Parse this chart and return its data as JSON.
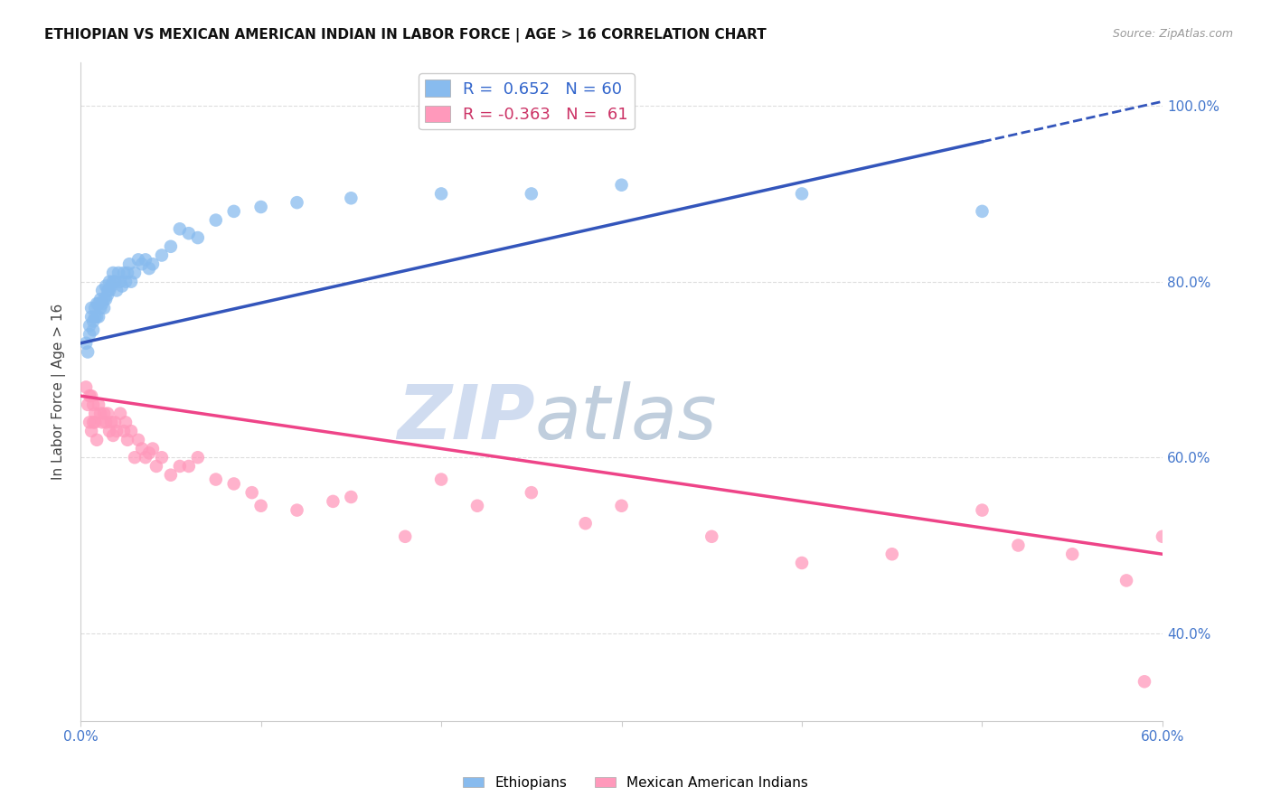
{
  "title": "ETHIOPIAN VS MEXICAN AMERICAN INDIAN IN LABOR FORCE | AGE > 16 CORRELATION CHART",
  "source": "Source: ZipAtlas.com",
  "ylabel": "In Labor Force | Age > 16",
  "xlim": [
    0.0,
    0.6
  ],
  "ylim": [
    0.3,
    1.05
  ],
  "yticks": [
    0.4,
    0.6,
    0.8,
    1.0
  ],
  "ytick_labels": [
    "40.0%",
    "60.0%",
    "80.0%",
    "100.0%"
  ],
  "blue_R": 0.652,
  "blue_N": 60,
  "pink_R": -0.363,
  "pink_N": 61,
  "blue_color": "#88BBEE",
  "pink_color": "#FF99BB",
  "blue_line_color": "#3355BB",
  "pink_line_color": "#EE4488",
  "watermark_zip": "ZIP",
  "watermark_atlas": "atlas",
  "watermark_color_zip": "#D0DCF0",
  "watermark_color_atlas": "#C8D8E8",
  "background_color": "#FFFFFF",
  "grid_color": "#DDDDDD",
  "blue_scatter_x": [
    0.003,
    0.004,
    0.005,
    0.005,
    0.006,
    0.006,
    0.007,
    0.007,
    0.008,
    0.008,
    0.009,
    0.009,
    0.01,
    0.01,
    0.011,
    0.011,
    0.012,
    0.012,
    0.013,
    0.013,
    0.014,
    0.014,
    0.015,
    0.015,
    0.016,
    0.016,
    0.017,
    0.018,
    0.018,
    0.019,
    0.02,
    0.021,
    0.022,
    0.023,
    0.024,
    0.025,
    0.026,
    0.027,
    0.028,
    0.03,
    0.032,
    0.034,
    0.036,
    0.038,
    0.04,
    0.045,
    0.05,
    0.055,
    0.06,
    0.065,
    0.075,
    0.085,
    0.1,
    0.12,
    0.15,
    0.2,
    0.25,
    0.3,
    0.4,
    0.5
  ],
  "blue_scatter_y": [
    0.73,
    0.72,
    0.74,
    0.75,
    0.76,
    0.77,
    0.755,
    0.745,
    0.77,
    0.76,
    0.775,
    0.76,
    0.775,
    0.76,
    0.78,
    0.77,
    0.79,
    0.775,
    0.78,
    0.77,
    0.795,
    0.78,
    0.79,
    0.785,
    0.8,
    0.79,
    0.795,
    0.8,
    0.81,
    0.8,
    0.79,
    0.81,
    0.8,
    0.795,
    0.81,
    0.8,
    0.81,
    0.82,
    0.8,
    0.81,
    0.825,
    0.82,
    0.825,
    0.815,
    0.82,
    0.83,
    0.84,
    0.86,
    0.855,
    0.85,
    0.87,
    0.88,
    0.885,
    0.89,
    0.895,
    0.9,
    0.9,
    0.91,
    0.9,
    0.88
  ],
  "pink_scatter_x": [
    0.003,
    0.004,
    0.005,
    0.005,
    0.006,
    0.006,
    0.007,
    0.007,
    0.008,
    0.008,
    0.009,
    0.01,
    0.011,
    0.012,
    0.013,
    0.014,
    0.015,
    0.016,
    0.017,
    0.018,
    0.019,
    0.02,
    0.022,
    0.024,
    0.025,
    0.026,
    0.028,
    0.03,
    0.032,
    0.034,
    0.036,
    0.038,
    0.04,
    0.042,
    0.045,
    0.05,
    0.055,
    0.06,
    0.065,
    0.075,
    0.085,
    0.095,
    0.1,
    0.12,
    0.14,
    0.15,
    0.18,
    0.2,
    0.22,
    0.25,
    0.28,
    0.3,
    0.35,
    0.4,
    0.45,
    0.5,
    0.52,
    0.55,
    0.58,
    0.6,
    0.59
  ],
  "pink_scatter_y": [
    0.68,
    0.66,
    0.67,
    0.64,
    0.67,
    0.63,
    0.66,
    0.64,
    0.65,
    0.64,
    0.62,
    0.66,
    0.65,
    0.64,
    0.65,
    0.64,
    0.65,
    0.63,
    0.64,
    0.625,
    0.64,
    0.63,
    0.65,
    0.63,
    0.64,
    0.62,
    0.63,
    0.6,
    0.62,
    0.61,
    0.6,
    0.605,
    0.61,
    0.59,
    0.6,
    0.58,
    0.59,
    0.59,
    0.6,
    0.575,
    0.57,
    0.56,
    0.545,
    0.54,
    0.55,
    0.555,
    0.51,
    0.575,
    0.545,
    0.56,
    0.525,
    0.545,
    0.51,
    0.48,
    0.49,
    0.54,
    0.5,
    0.49,
    0.46,
    0.51,
    0.345
  ],
  "blue_line_x_start": 0.0,
  "blue_line_x_solid_end": 0.5,
  "blue_line_x_dash_end": 0.6,
  "blue_line_y_at_0": 0.73,
  "blue_line_y_at_06": 1.005,
  "pink_line_y_at_0": 0.67,
  "pink_line_y_at_06": 0.49
}
